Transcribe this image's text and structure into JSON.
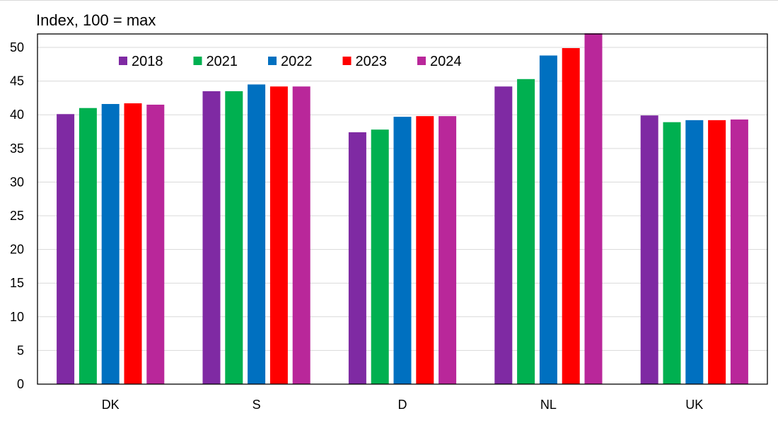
{
  "chart_data": {
    "type": "bar",
    "title": "",
    "ylabel": "Index, 100 = max",
    "xlabel": "",
    "ylim": [
      0,
      52
    ],
    "yticks": [
      0,
      5,
      10,
      15,
      20,
      25,
      30,
      35,
      40,
      45,
      50
    ],
    "grid": true,
    "legend_position": "top-left",
    "categories": [
      "DK",
      "S",
      "D",
      "NL",
      "UK"
    ],
    "series": [
      {
        "name": "2018",
        "color": "#7F2AA3",
        "values": [
          40.1,
          43.5,
          37.4,
          44.2,
          39.9
        ]
      },
      {
        "name": "2021",
        "color": "#00B050",
        "values": [
          41.0,
          43.5,
          37.8,
          45.3,
          38.9
        ]
      },
      {
        "name": "2022",
        "color": "#0070C0",
        "values": [
          41.6,
          44.5,
          39.7,
          48.8,
          39.2
        ]
      },
      {
        "name": "2023",
        "color": "#FF0000",
        "values": [
          41.7,
          44.2,
          39.8,
          49.9,
          39.2
        ]
      },
      {
        "name": "2024",
        "color": "#B9279A",
        "values": [
          41.5,
          44.2,
          39.8,
          52.1,
          39.3
        ]
      }
    ]
  }
}
